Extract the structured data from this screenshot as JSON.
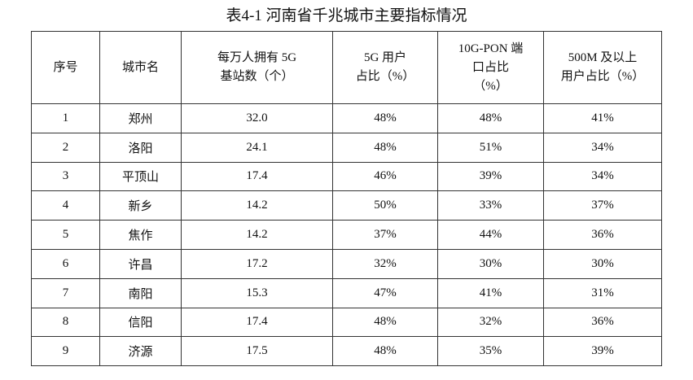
{
  "title": "表4-1 河南省千兆城市主要指标情况",
  "table": {
    "header": [
      [
        "序号"
      ],
      [
        "城市名"
      ],
      [
        "每万人拥有 5G",
        "基站数（个）"
      ],
      [
        "5G 用户",
        "占比（%）"
      ],
      [
        "10G-PON 端",
        "口占比",
        "（%）"
      ],
      [
        "500M 及以上",
        "用户占比（%）"
      ]
    ],
    "rows": [
      [
        "1",
        "郑州",
        "32.0",
        "48%",
        "48%",
        "41%"
      ],
      [
        "2",
        "洛阳",
        "24.1",
        "48%",
        "51%",
        "34%"
      ],
      [
        "3",
        "平顶山",
        "17.4",
        "46%",
        "39%",
        "34%"
      ],
      [
        "4",
        "新乡",
        "14.2",
        "50%",
        "33%",
        "37%"
      ],
      [
        "5",
        "焦作",
        "14.2",
        "37%",
        "44%",
        "36%"
      ],
      [
        "6",
        "许昌",
        "17.2",
        "32%",
        "30%",
        "30%"
      ],
      [
        "7",
        "南阳",
        "15.3",
        "47%",
        "41%",
        "31%"
      ],
      [
        "8",
        "信阳",
        "17.4",
        "48%",
        "32%",
        "36%"
      ],
      [
        "9",
        "济源",
        "17.5",
        "48%",
        "35%",
        "39%"
      ]
    ]
  }
}
